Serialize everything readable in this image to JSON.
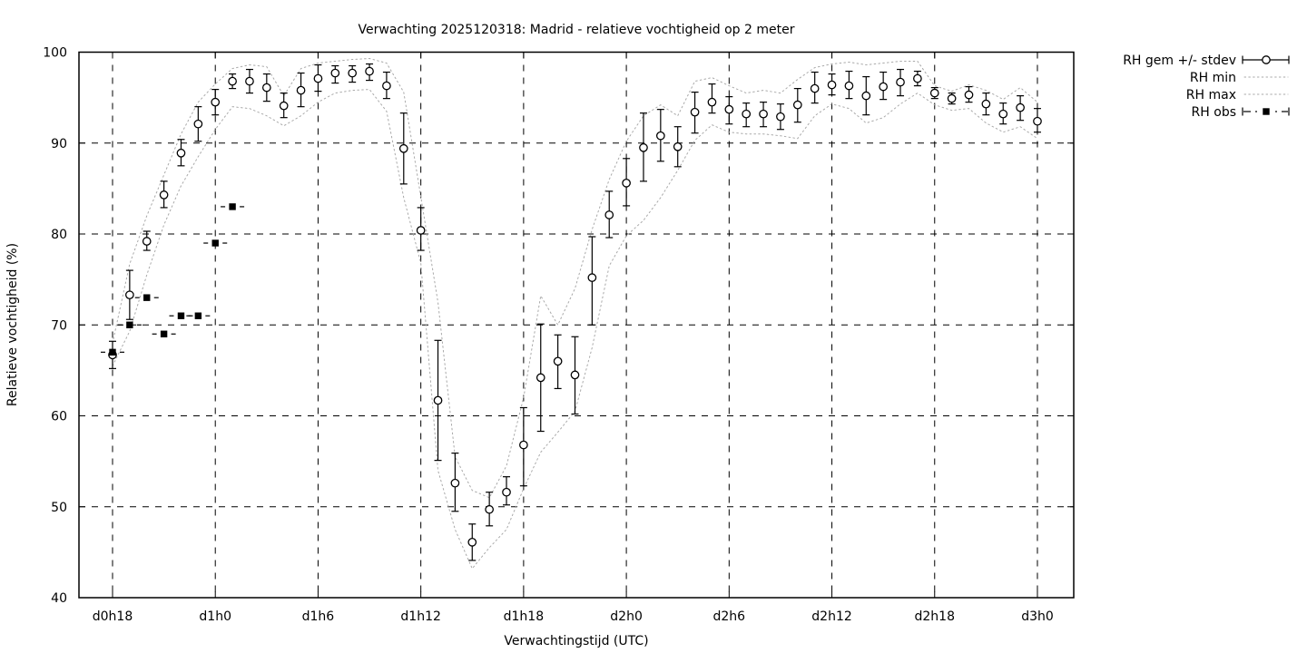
{
  "colors": {
    "foreground": "#000000",
    "envelope": "#a9a9a9",
    "background": "#ffffff"
  },
  "chart_data": {
    "type": "line",
    "title": "Verwachting 2025120318: Madrid - relatieve vochtigheid op 2 meter",
    "xlabel": "Verwachtingstijd (UTC)",
    "ylabel": "Relatieve vochtigheid (%)",
    "ylim": [
      40,
      100
    ],
    "yticks": [
      40,
      50,
      60,
      70,
      80,
      90,
      100
    ],
    "grid": true,
    "legend_position": "outside-top-right",
    "xticks": {
      "labels": [
        "d0h18",
        "d1h0",
        "d1h6",
        "d1h12",
        "d1h18",
        "d2h0",
        "d2h6",
        "d2h12",
        "d2h18",
        "d3h0"
      ],
      "hours": [
        0,
        6,
        12,
        18,
        24,
        30,
        36,
        42,
        48,
        54
      ]
    },
    "series": [
      {
        "name": "RH gem +/- stdev",
        "style": "errorbars-open-circle",
        "hours": [
          0,
          1,
          2,
          3,
          4,
          5,
          6,
          7,
          8,
          9,
          10,
          11,
          12,
          13,
          14,
          15,
          16,
          17,
          18,
          19,
          20,
          21,
          22,
          23,
          24,
          25,
          26,
          27,
          28,
          29,
          30,
          31,
          32,
          33,
          34,
          35,
          36,
          37,
          38,
          39,
          40,
          41,
          42,
          43,
          44,
          45,
          46,
          47,
          48,
          49,
          50,
          51,
          52,
          53,
          54
        ],
        "values": [
          66.7,
          73.3,
          79.2,
          84.3,
          88.9,
          92.1,
          94.5,
          96.8,
          96.8,
          96.1,
          94.1,
          95.8,
          97.1,
          97.7,
          97.7,
          97.9,
          96.3,
          89.4,
          80.4,
          61.7,
          52.6,
          46.1,
          49.7,
          51.6,
          56.8,
          64.2,
          66.0,
          64.5,
          75.2,
          82.1,
          85.6,
          89.5,
          90.8,
          89.6,
          93.4,
          94.5,
          93.7,
          93.2,
          93.2,
          92.9,
          94.2,
          96.0,
          96.4,
          96.3,
          95.2,
          96.2,
          96.7,
          97.1,
          95.5,
          94.9,
          95.3,
          94.3,
          93.2,
          93.9,
          92.4
        ],
        "err_lo": [
          65.2,
          70.6,
          78.2,
          82.9,
          87.5,
          90.2,
          93.1,
          96.0,
          95.5,
          94.6,
          92.8,
          94.0,
          95.7,
          96.6,
          96.7,
          96.9,
          94.9,
          85.5,
          78.2,
          55.1,
          49.5,
          44.1,
          47.9,
          50.2,
          52.3,
          58.3,
          63.0,
          60.2,
          70.0,
          79.6,
          83.1,
          85.8,
          88.0,
          87.4,
          91.1,
          93.3,
          92.1,
          91.8,
          91.8,
          91.5,
          92.3,
          94.4,
          95.3,
          94.9,
          93.1,
          94.8,
          95.2,
          96.3,
          94.9,
          94.3,
          94.5,
          93.1,
          92.1,
          92.5,
          91.2
        ],
        "err_hi": [
          68.2,
          76.0,
          80.3,
          85.8,
          90.4,
          94.0,
          95.9,
          97.6,
          98.1,
          97.6,
          95.5,
          97.7,
          98.6,
          98.5,
          98.5,
          98.7,
          97.8,
          93.3,
          82.9,
          68.3,
          55.9,
          48.1,
          51.6,
          53.3,
          60.9,
          70.1,
          68.9,
          68.7,
          79.7,
          84.7,
          88.3,
          93.3,
          93.7,
          91.8,
          95.6,
          96.5,
          95.1,
          94.4,
          94.5,
          94.3,
          96.0,
          97.8,
          97.6,
          97.9,
          97.3,
          97.8,
          98.1,
          97.9,
          96.1,
          95.5,
          96.2,
          95.5,
          94.4,
          95.2,
          93.8
        ]
      },
      {
        "name": "RH min",
        "style": "dotted",
        "values": [
          65.5,
          69.3,
          75.5,
          81.0,
          85.3,
          88.5,
          91.5,
          94.0,
          93.8,
          93.0,
          91.9,
          93.0,
          94.5,
          95.5,
          95.8,
          95.9,
          93.5,
          84.0,
          76.8,
          54.0,
          47.5,
          43.2,
          45.5,
          47.5,
          52.0,
          56.0,
          58.2,
          60.5,
          67.5,
          76.5,
          79.8,
          81.5,
          84.0,
          87.0,
          90.3,
          92.0,
          91.2,
          91.0,
          91.0,
          90.8,
          90.5,
          93.0,
          94.3,
          93.8,
          92.2,
          92.8,
          94.3,
          95.5,
          94.2,
          93.6,
          93.8,
          92.2,
          91.2,
          91.8,
          90.5
        ]
      },
      {
        "name": "RH max",
        "style": "dotted",
        "values": [
          68.0,
          76.7,
          82.0,
          86.5,
          91.0,
          94.5,
          96.5,
          98.2,
          98.6,
          98.4,
          95.2,
          98.2,
          98.8,
          99.0,
          99.2,
          99.3,
          98.8,
          95.6,
          84.1,
          72.5,
          55.5,
          51.8,
          51.0,
          54.5,
          62.0,
          73.2,
          70.0,
          74.0,
          80.5,
          86.0,
          90.2,
          93.0,
          94.2,
          93.0,
          96.8,
          97.2,
          96.3,
          95.5,
          95.8,
          95.5,
          97.0,
          98.3,
          98.7,
          98.9,
          98.6,
          98.8,
          99.0,
          99.0,
          96.3,
          95.7,
          96.4,
          95.8,
          94.8,
          96.1,
          94.5
        ]
      },
      {
        "name": "RH obs",
        "style": "dashdot-filled-square",
        "hours": [
          0,
          1,
          2,
          3,
          4,
          5,
          6,
          7
        ],
        "values": [
          67,
          70,
          73,
          69,
          71,
          71,
          79,
          83
        ]
      }
    ]
  }
}
